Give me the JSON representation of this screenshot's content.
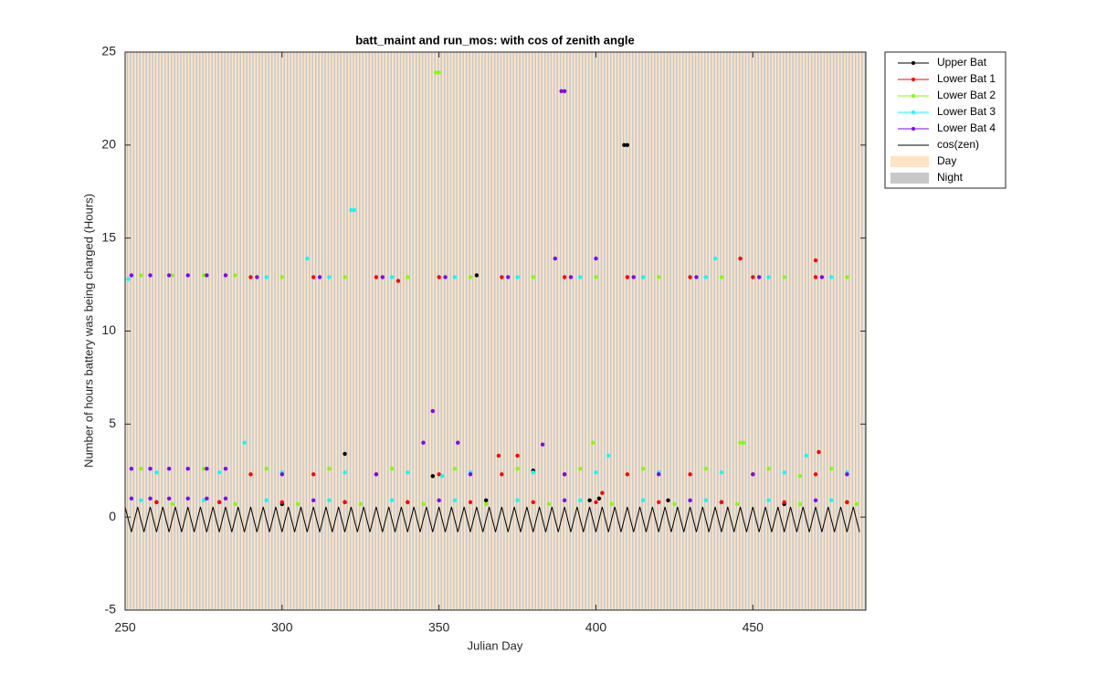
{
  "chart_data": {
    "type": "scatter",
    "title": "batt_maint and run_mos: with cos of zenith angle",
    "xlabel": "Julian Day",
    "ylabel": "Number of hours battery was being charged (Hours)",
    "xlim": [
      250,
      486
    ],
    "xticks": [
      250,
      300,
      350,
      400,
      450
    ],
    "ylim": [
      -5,
      25
    ],
    "yticks": [
      -5,
      0,
      5,
      10,
      15,
      20,
      25
    ],
    "series": [
      {
        "name": "Upper Bat",
        "color": "#000000",
        "x": [
          260,
          280,
          300,
          320,
          320,
          340,
          348,
          362,
          365,
          380,
          398,
          401,
          409,
          410,
          423,
          440,
          460,
          480
        ],
        "values": [
          0.8,
          0.8,
          0.7,
          0.8,
          3.4,
          0.8,
          2.2,
          13,
          0.9,
          2.5,
          0.9,
          1.0,
          20,
          20,
          0.9,
          0.8,
          0.7,
          0.8
        ]
      },
      {
        "name": "Lower Bat 1",
        "color": "#ff0000",
        "x": [
          290,
          310,
          330,
          350,
          370,
          390,
          410,
          430,
          450,
          470,
          290,
          310,
          330,
          350,
          370,
          390,
          410,
          430,
          450,
          470,
          260,
          280,
          300,
          320,
          340,
          360,
          380,
          400,
          420,
          440,
          460,
          480,
          337,
          369,
          375,
          402,
          446,
          470,
          471
        ],
        "values": [
          12.9,
          12.9,
          12.9,
          12.9,
          12.9,
          12.9,
          12.9,
          12.9,
          12.9,
          12.9,
          2.3,
          2.3,
          2.3,
          2.3,
          2.3,
          2.3,
          2.3,
          2.3,
          2.3,
          2.3,
          0.8,
          0.8,
          0.8,
          0.8,
          0.8,
          0.8,
          0.8,
          0.8,
          0.8,
          0.8,
          0.8,
          0.8,
          12.7,
          3.3,
          3.3,
          1.3,
          13.9,
          13.8,
          3.5
        ]
      },
      {
        "name": "Lower Bat 2",
        "color": "#80ff00",
        "x": [
          255,
          265,
          275,
          285,
          300,
          320,
          340,
          360,
          380,
          400,
          420,
          440,
          460,
          480,
          255,
          275,
          295,
          315,
          335,
          355,
          375,
          395,
          415,
          435,
          455,
          475,
          265,
          285,
          305,
          325,
          345,
          365,
          385,
          405,
          425,
          445,
          465,
          483,
          349,
          350,
          399,
          446,
          447,
          465
        ],
        "values": [
          13.0,
          13.0,
          13.0,
          13.0,
          12.9,
          12.9,
          12.9,
          12.9,
          12.9,
          12.9,
          12.9,
          12.9,
          12.9,
          12.9,
          2.6,
          2.6,
          2.6,
          2.6,
          2.6,
          2.6,
          2.6,
          2.6,
          2.6,
          2.6,
          2.6,
          2.6,
          0.7,
          0.7,
          0.7,
          0.7,
          0.7,
          0.7,
          0.7,
          0.7,
          0.7,
          0.7,
          0.7,
          0.7,
          23.9,
          23.9,
          4.0,
          4.0,
          4.0,
          2.2
        ]
      },
      {
        "name": "Lower Bat 3",
        "color": "#00ffff",
        "x": [
          295,
          315,
          335,
          355,
          375,
          395,
          415,
          435,
          455,
          475,
          260,
          280,
          300,
          320,
          340,
          360,
          380,
          400,
          420,
          440,
          460,
          480,
          255,
          275,
          295,
          315,
          335,
          355,
          375,
          395,
          415,
          435,
          455,
          475,
          251,
          288,
          308,
          322,
          323,
          351,
          404,
          438,
          467
        ],
        "values": [
          12.9,
          12.9,
          12.9,
          12.9,
          12.9,
          12.9,
          12.9,
          12.9,
          12.9,
          12.9,
          2.4,
          2.4,
          2.4,
          2.4,
          2.4,
          2.4,
          2.4,
          2.4,
          2.4,
          2.4,
          2.4,
          2.4,
          0.9,
          0.9,
          0.9,
          0.9,
          0.9,
          0.9,
          0.9,
          0.9,
          0.9,
          0.9,
          0.9,
          0.9,
          12.8,
          4.0,
          13.9,
          16.5,
          16.5,
          2.2,
          3.3,
          13.9,
          3.3
        ]
      },
      {
        "name": "Lower Bat 4",
        "color": "#8000ff",
        "x": [
          252,
          258,
          264,
          270,
          276,
          282,
          292,
          312,
          332,
          352,
          372,
          392,
          412,
          432,
          452,
          472,
          252,
          258,
          264,
          270,
          276,
          282,
          300,
          330,
          360,
          390,
          420,
          450,
          480,
          252,
          258,
          264,
          270,
          276,
          282,
          310,
          350,
          390,
          430,
          470,
          345,
          348,
          356,
          383,
          387,
          389,
          390,
          400
        ],
        "values": [
          13.0,
          13.0,
          13.0,
          13.0,
          13.0,
          13.0,
          12.9,
          12.9,
          12.9,
          12.9,
          12.9,
          12.9,
          12.9,
          12.9,
          12.9,
          12.9,
          2.6,
          2.6,
          2.6,
          2.6,
          2.6,
          2.6,
          2.3,
          2.3,
          2.3,
          2.3,
          2.3,
          2.3,
          2.3,
          1.0,
          1.0,
          1.0,
          1.0,
          1.0,
          1.0,
          0.9,
          0.9,
          0.9,
          0.9,
          0.9,
          4.0,
          5.7,
          4.0,
          3.9,
          13.9,
          22.9,
          22.9,
          13.9
        ]
      },
      {
        "name": "cos(zen)",
        "color": "#000000",
        "type": "line",
        "x": [
          250,
          252,
          254,
          256,
          258,
          260,
          262,
          264,
          266,
          268,
          270,
          272,
          274,
          276,
          278,
          280,
          282,
          284,
          286,
          288,
          290,
          292,
          294,
          296,
          298,
          300,
          302,
          304,
          306,
          308,
          310,
          312,
          314,
          316,
          318,
          320,
          322,
          324,
          326,
          328,
          330,
          332,
          334,
          336,
          338,
          340,
          342,
          344,
          346,
          348,
          350,
          352,
          354,
          356,
          358,
          360,
          362,
          364,
          366,
          368,
          370,
          372,
          374,
          376,
          378,
          380,
          382,
          384,
          386,
          388,
          390,
          392,
          394,
          396,
          398,
          400,
          402,
          404,
          406,
          408,
          410,
          412,
          414,
          416,
          418,
          420,
          422,
          424,
          426,
          428,
          430,
          432,
          434,
          436,
          438,
          440,
          442,
          444,
          446,
          448,
          450,
          452,
          454,
          456,
          458,
          460,
          462,
          464,
          466,
          468,
          470,
          472,
          474,
          476,
          478,
          480,
          482,
          484
        ],
        "values": [
          0.55,
          -0.8,
          0.55,
          -0.8,
          0.55,
          -0.8,
          0.55,
          -0.8,
          0.55,
          -0.8,
          0.55,
          -0.8,
          0.55,
          -0.8,
          0.55,
          -0.8,
          0.55,
          -0.8,
          0.55,
          -0.8,
          0.55,
          -0.8,
          0.55,
          -0.8,
          0.55,
          -0.8,
          0.55,
          -0.8,
          0.55,
          -0.8,
          0.55,
          -0.8,
          0.55,
          -0.8,
          0.55,
          -0.8,
          0.55,
          -0.8,
          0.55,
          -0.8,
          0.55,
          -0.8,
          0.55,
          -0.8,
          0.55,
          -0.8,
          0.55,
          -0.8,
          0.55,
          -0.8,
          0.55,
          -0.8,
          0.55,
          -0.8,
          0.55,
          -0.8,
          0.55,
          -0.8,
          0.55,
          -0.8,
          0.55,
          -0.8,
          0.55,
          -0.8,
          0.55,
          -0.8,
          0.55,
          -0.8,
          0.55,
          -0.8,
          0.55,
          -0.8,
          0.55,
          -0.8,
          0.55,
          -0.8,
          0.55,
          -0.8,
          0.55,
          -0.8,
          0.55,
          -0.8,
          0.55,
          -0.8,
          0.55,
          -0.8,
          0.55,
          -0.8,
          0.55,
          -0.8,
          0.55,
          -0.8,
          0.55,
          -0.8,
          0.55,
          -0.8,
          0.55,
          -0.8,
          0.55,
          -0.8,
          0.55,
          -0.8,
          0.55,
          -0.8,
          0.55,
          -0.8,
          0.55,
          -0.8,
          0.55,
          -0.8,
          0.55,
          -0.8,
          0.55,
          -0.8,
          0.55,
          -0.8,
          0.55,
          -0.8
        ]
      }
    ],
    "legend_patches": [
      {
        "name": "Day",
        "color": "#fde4c4"
      },
      {
        "name": "Night",
        "color": "#c8c8c8"
      }
    ],
    "legend_position": "outside-right"
  }
}
